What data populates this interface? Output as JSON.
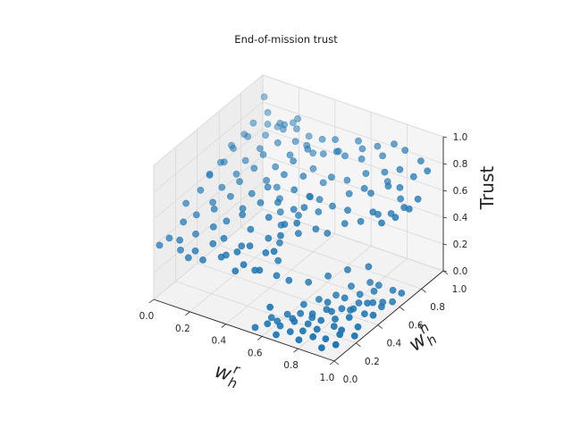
{
  "chart_data": {
    "type": "scatter3d",
    "title": "End-of-mission trust",
    "xlabel": "w_h^r",
    "ylabel": "w_h^h",
    "zlabel": "Trust",
    "xlim": [
      0.0,
      1.0
    ],
    "ylim": [
      0.0,
      1.0
    ],
    "zlim": [
      0.0,
      1.0
    ],
    "x_ticks": [
      "0.0",
      "0.2",
      "0.4",
      "0.6",
      "0.8",
      "1.0"
    ],
    "y_ticks": [
      "0.0",
      "0.2",
      "0.4",
      "0.6",
      "0.8",
      "1.0"
    ],
    "z_ticks": [
      "0.0",
      "0.2",
      "0.4",
      "0.6",
      "0.8",
      "1.0"
    ],
    "grid": true,
    "marker_color": "#1f77b4",
    "series": [
      {
        "points": [
          [
            0.05,
            0.06,
            0.44
          ],
          [
            0.12,
            0.04,
            0.47
          ],
          [
            0.2,
            0.05,
            0.42
          ],
          [
            0.28,
            0.08,
            0.49
          ],
          [
            0.35,
            0.04,
            0.45
          ],
          [
            0.42,
            0.07,
            0.5
          ],
          [
            0.48,
            0.03,
            0.46
          ],
          [
            0.55,
            0.06,
            0.43
          ],
          [
            0.08,
            0.14,
            0.52
          ],
          [
            0.16,
            0.12,
            0.48
          ],
          [
            0.24,
            0.15,
            0.55
          ],
          [
            0.31,
            0.13,
            0.51
          ],
          [
            0.39,
            0.16,
            0.47
          ],
          [
            0.46,
            0.12,
            0.53
          ],
          [
            0.53,
            0.15,
            0.49
          ],
          [
            0.6,
            0.11,
            0.56
          ],
          [
            0.04,
            0.23,
            0.58
          ],
          [
            0.11,
            0.21,
            0.54
          ],
          [
            0.19,
            0.24,
            0.6
          ],
          [
            0.27,
            0.22,
            0.56
          ],
          [
            0.34,
            0.25,
            0.62
          ],
          [
            0.41,
            0.21,
            0.57
          ],
          [
            0.49,
            0.24,
            0.52
          ],
          [
            0.57,
            0.22,
            0.59
          ],
          [
            0.06,
            0.33,
            0.62
          ],
          [
            0.14,
            0.31,
            0.58
          ],
          [
            0.22,
            0.34,
            0.64
          ],
          [
            0.3,
            0.32,
            0.6
          ],
          [
            0.38,
            0.35,
            0.66
          ],
          [
            0.45,
            0.31,
            0.61
          ],
          [
            0.52,
            0.34,
            0.57
          ],
          [
            0.6,
            0.32,
            0.63
          ],
          [
            0.05,
            0.43,
            0.66
          ],
          [
            0.13,
            0.41,
            0.62
          ],
          [
            0.21,
            0.44,
            0.68
          ],
          [
            0.29,
            0.42,
            0.64
          ],
          [
            0.36,
            0.45,
            0.7
          ],
          [
            0.44,
            0.41,
            0.65
          ],
          [
            0.51,
            0.44,
            0.61
          ],
          [
            0.58,
            0.42,
            0.67
          ],
          [
            0.07,
            0.53,
            0.7
          ],
          [
            0.15,
            0.51,
            0.66
          ],
          [
            0.23,
            0.54,
            0.72
          ],
          [
            0.31,
            0.52,
            0.68
          ],
          [
            0.39,
            0.55,
            0.74
          ],
          [
            0.47,
            0.51,
            0.69
          ],
          [
            0.54,
            0.54,
            0.65
          ],
          [
            0.06,
            0.63,
            0.73
          ],
          [
            0.14,
            0.61,
            0.69
          ],
          [
            0.22,
            0.64,
            0.75
          ],
          [
            0.3,
            0.62,
            0.71
          ],
          [
            0.38,
            0.65,
            0.77
          ],
          [
            0.46,
            0.61,
            0.72
          ],
          [
            0.08,
            0.73,
            0.76
          ],
          [
            0.16,
            0.71,
            0.72
          ],
          [
            0.24,
            0.74,
            0.78
          ],
          [
            0.32,
            0.72,
            0.74
          ],
          [
            0.4,
            0.75,
            0.8
          ],
          [
            0.05,
            0.83,
            0.78
          ],
          [
            0.13,
            0.81,
            0.74
          ],
          [
            0.21,
            0.84,
            0.8
          ],
          [
            0.29,
            0.82,
            0.76
          ],
          [
            0.07,
            0.93,
            0.8
          ],
          [
            0.15,
            0.91,
            0.77
          ],
          [
            0.23,
            0.94,
            0.82
          ],
          [
            0.55,
            0.02,
            0.03
          ],
          [
            0.6,
            0.05,
            0.06
          ],
          [
            0.66,
            0.03,
            0.02
          ],
          [
            0.72,
            0.06,
            0.05
          ],
          [
            0.78,
            0.04,
            0.03
          ],
          [
            0.84,
            0.07,
            0.06
          ],
          [
            0.9,
            0.05,
            0.02
          ],
          [
            0.96,
            0.08,
            0.05
          ],
          [
            0.58,
            0.12,
            0.05
          ],
          [
            0.64,
            0.1,
            0.03
          ],
          [
            0.7,
            0.13,
            0.07
          ],
          [
            0.76,
            0.11,
            0.04
          ],
          [
            0.82,
            0.14,
            0.06
          ],
          [
            0.88,
            0.12,
            0.03
          ],
          [
            0.94,
            0.15,
            0.07
          ],
          [
            0.62,
            0.2,
            0.04
          ],
          [
            0.68,
            0.22,
            0.06
          ],
          [
            0.74,
            0.19,
            0.03
          ],
          [
            0.8,
            0.21,
            0.07
          ],
          [
            0.86,
            0.23,
            0.04
          ],
          [
            0.92,
            0.2,
            0.06
          ],
          [
            0.98,
            0.22,
            0.03
          ],
          [
            0.65,
            0.3,
            0.06
          ],
          [
            0.71,
            0.28,
            0.03
          ],
          [
            0.77,
            0.31,
            0.07
          ],
          [
            0.83,
            0.29,
            0.04
          ],
          [
            0.89,
            0.32,
            0.06
          ],
          [
            0.95,
            0.3,
            0.03
          ],
          [
            0.68,
            0.39,
            0.05
          ],
          [
            0.74,
            0.37,
            0.07
          ],
          [
            0.8,
            0.4,
            0.03
          ],
          [
            0.86,
            0.38,
            0.06
          ],
          [
            0.92,
            0.41,
            0.04
          ],
          [
            0.98,
            0.39,
            0.07
          ],
          [
            0.72,
            0.48,
            0.04
          ],
          [
            0.78,
            0.46,
            0.06
          ],
          [
            0.84,
            0.49,
            0.03
          ],
          [
            0.9,
            0.47,
            0.07
          ],
          [
            0.96,
            0.5,
            0.05
          ],
          [
            0.75,
            0.57,
            0.06
          ],
          [
            0.81,
            0.55,
            0.04
          ],
          [
            0.87,
            0.58,
            0.07
          ],
          [
            0.93,
            0.56,
            0.03
          ],
          [
            0.8,
            0.66,
            0.05
          ],
          [
            0.86,
            0.64,
            0.07
          ],
          [
            0.92,
            0.67,
            0.04
          ],
          [
            0.98,
            0.65,
            0.06
          ],
          [
            0.58,
            0.55,
            0.55
          ],
          [
            0.64,
            0.58,
            0.6
          ],
          [
            0.7,
            0.62,
            0.57
          ],
          [
            0.66,
            0.7,
            0.62
          ],
          [
            0.72,
            0.74,
            0.66
          ],
          [
            0.6,
            0.78,
            0.64
          ],
          [
            0.68,
            0.82,
            0.7
          ],
          [
            0.76,
            0.86,
            0.72
          ],
          [
            0.55,
            0.72,
            0.68
          ],
          [
            0.62,
            0.88,
            0.74
          ],
          [
            0.5,
            0.85,
            0.76
          ],
          [
            0.45,
            0.92,
            0.78
          ],
          [
            0.56,
            0.95,
            0.8
          ],
          [
            0.7,
            0.94,
            0.76
          ],
          [
            0.82,
            0.9,
            0.74
          ],
          [
            0.88,
            0.8,
            0.7
          ],
          [
            0.78,
            0.7,
            0.68
          ],
          [
            0.84,
            0.76,
            0.72
          ],
          [
            0.92,
            0.86,
            0.76
          ],
          [
            0.96,
            0.92,
            0.78
          ],
          [
            0.9,
            0.96,
            0.8
          ],
          [
            0.8,
            0.98,
            0.82
          ],
          [
            0.74,
            0.92,
            0.6
          ],
          [
            0.86,
            0.84,
            0.58
          ],
          [
            0.94,
            0.74,
            0.62
          ],
          [
            0.98,
            0.8,
            0.66
          ],
          [
            0.35,
            0.88,
            0.66
          ],
          [
            0.4,
            0.8,
            0.62
          ],
          [
            0.48,
            0.76,
            0.58
          ],
          [
            0.52,
            0.66,
            0.54
          ],
          [
            0.44,
            0.7,
            0.5
          ],
          [
            0.36,
            0.95,
            0.72
          ],
          [
            0.28,
            0.96,
            0.7
          ],
          [
            0.18,
            0.98,
            0.74
          ],
          [
            0.1,
            0.97,
            0.68
          ],
          [
            0.02,
            0.98,
            0.86
          ],
          [
            0.62,
            0.46,
            0.5
          ],
          [
            0.56,
            0.4,
            0.48
          ],
          [
            0.5,
            0.5,
            0.52
          ],
          [
            0.66,
            0.5,
            0.46
          ],
          [
            0.72,
            0.56,
            0.52
          ],
          [
            0.76,
            0.64,
            0.5
          ],
          [
            0.82,
            0.7,
            0.54
          ],
          [
            0.88,
            0.72,
            0.56
          ],
          [
            0.94,
            0.66,
            0.6
          ],
          [
            0.98,
            0.72,
            0.64
          ],
          [
            0.9,
            0.6,
            0.58
          ],
          [
            0.84,
            0.62,
            0.62
          ],
          [
            0.02,
            0.02,
            0.4
          ],
          [
            0.1,
            0.08,
            0.36
          ],
          [
            0.18,
            0.02,
            0.38
          ],
          [
            0.26,
            0.02,
            0.4
          ],
          [
            0.34,
            0.1,
            0.42
          ],
          [
            0.44,
            0.02,
            0.4
          ],
          [
            0.5,
            0.1,
            0.38
          ],
          [
            0.62,
            0.04,
            0.2
          ],
          [
            0.58,
            0.28,
            0.22
          ],
          [
            0.64,
            0.36,
            0.18
          ],
          [
            0.7,
            0.44,
            0.2
          ],
          [
            0.76,
            0.52,
            0.22
          ],
          [
            0.84,
            0.58,
            0.24
          ],
          [
            0.02,
            0.48,
            0.62
          ],
          [
            0.02,
            0.58,
            0.64
          ],
          [
            0.02,
            0.68,
            0.7
          ],
          [
            0.03,
            0.78,
            0.72
          ],
          [
            0.1,
            0.88,
            0.76
          ],
          [
            0.18,
            0.9,
            0.78
          ],
          [
            0.26,
            0.88,
            0.8
          ],
          [
            0.34,
            0.84,
            0.74
          ],
          [
            0.42,
            0.86,
            0.7
          ],
          [
            0.48,
            0.9,
            0.72
          ],
          [
            0.54,
            0.86,
            0.74
          ],
          [
            0.6,
            0.92,
            0.78
          ],
          [
            0.66,
            0.96,
            0.8
          ],
          [
            0.74,
            0.98,
            0.84
          ],
          [
            0.6,
            0.14,
            0.02
          ],
          [
            0.66,
            0.18,
            0.04
          ],
          [
            0.72,
            0.26,
            0.02
          ],
          [
            0.78,
            0.34,
            0.04
          ],
          [
            0.84,
            0.44,
            0.02
          ],
          [
            0.9,
            0.52,
            0.04
          ],
          [
            0.96,
            0.6,
            0.02
          ],
          [
            0.56,
            0.2,
            0.3
          ],
          [
            0.52,
            0.28,
            0.34
          ],
          [
            0.48,
            0.36,
            0.4
          ],
          [
            0.44,
            0.44,
            0.46
          ],
          [
            0.4,
            0.5,
            0.5
          ],
          [
            0.36,
            0.56,
            0.54
          ],
          [
            0.32,
            0.6,
            0.58
          ]
        ]
      }
    ]
  }
}
